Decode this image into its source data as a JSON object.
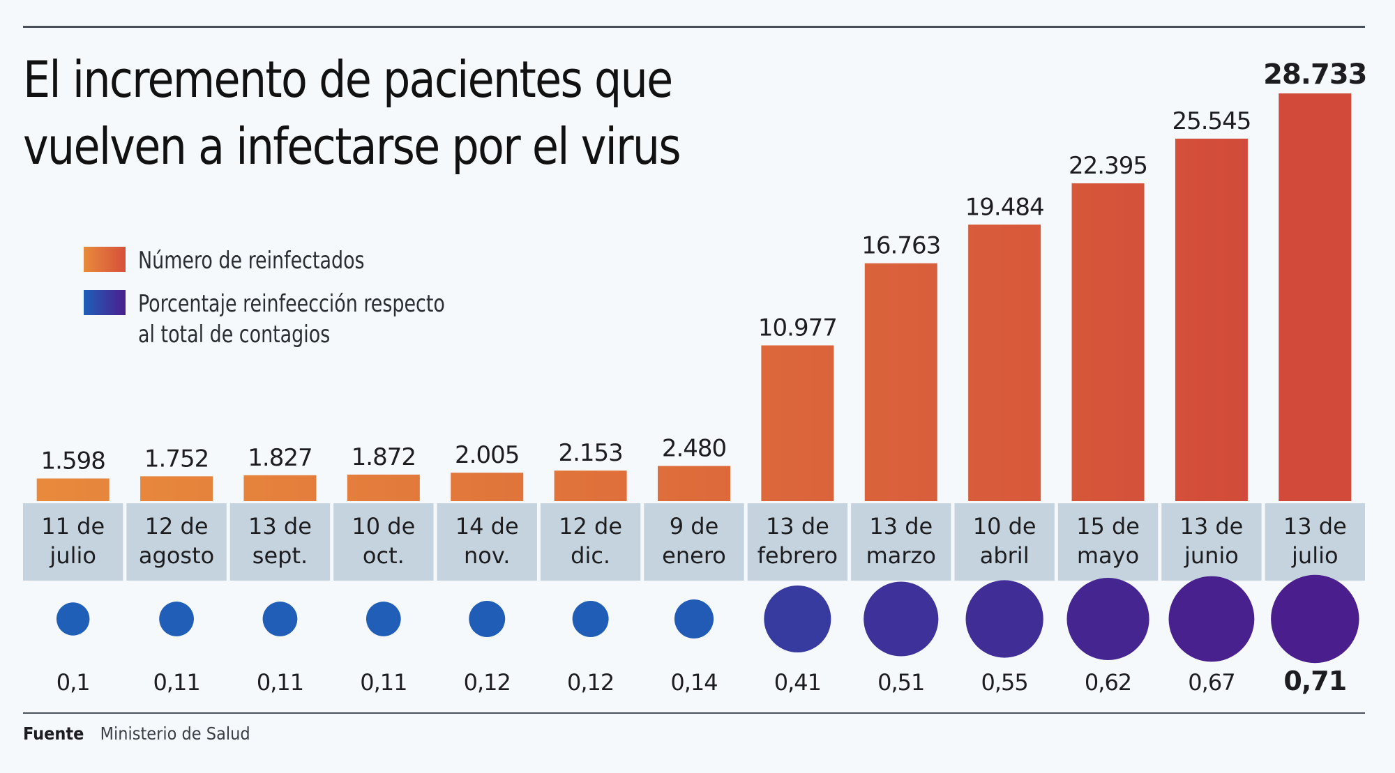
{
  "title_line1": "El incremento de pacientes que",
  "title_line2": "vuelven a infectarse por el virus",
  "legend": {
    "reinfected": "Número de reinfectados",
    "percentage_line1": "Porcentaje reinfeección respecto",
    "percentage_line2": "al total de contagios"
  },
  "footer": {
    "label": "Fuente",
    "source": "Ministerio de Salud"
  },
  "colors": {
    "bar_start": "#e88a3c",
    "bar_end": "#d24a3a",
    "circle_start": "#1f5fb8",
    "circle_end": "#4a1e8c",
    "category_bg": "#c5d3de",
    "background": "#f6f9fc"
  },
  "chart_data": {
    "type": "bar",
    "title": "El incremento de pacientes que vuelven a infectarse por el virus",
    "xlabel": "",
    "ylabel": "",
    "categories": [
      [
        "11 de",
        "julio"
      ],
      [
        "12 de",
        "agosto"
      ],
      [
        "13 de",
        "sept."
      ],
      [
        "10 de",
        "oct."
      ],
      [
        "14 de",
        "nov."
      ],
      [
        "12 de",
        "dic."
      ],
      [
        "9 de",
        "enero"
      ],
      [
        "13 de",
        "febrero"
      ],
      [
        "13 de",
        "marzo"
      ],
      [
        "10 de",
        "abril"
      ],
      [
        "15 de",
        "mayo"
      ],
      [
        "13 de",
        "junio"
      ],
      [
        "13 de",
        "julio"
      ]
    ],
    "series": [
      {
        "name": "Número de reinfectados",
        "type": "bar",
        "values": [
          1598,
          1752,
          1827,
          1872,
          2005,
          2153,
          2480,
          10977,
          16763,
          19484,
          22395,
          25545,
          28733
        ],
        "labels": [
          "1.598",
          "1.752",
          "1.827",
          "1.872",
          "2.005",
          "2.153",
          "2.480",
          "10.977",
          "16.763",
          "19.484",
          "22.395",
          "25.545",
          "28.733"
        ]
      },
      {
        "name": "Porcentaje reinfeección respecto al total de contagios",
        "type": "bubble",
        "values": [
          0.1,
          0.11,
          0.11,
          0.11,
          0.12,
          0.12,
          0.14,
          0.41,
          0.51,
          0.55,
          0.62,
          0.67,
          0.71
        ],
        "labels": [
          "0,1",
          "0,11",
          "0,11",
          "0,11",
          "0,12",
          "0,12",
          "0,14",
          "0,41",
          "0,51",
          "0,55",
          "0,62",
          "0,67",
          "0,71"
        ]
      }
    ],
    "ylim": [
      0,
      28733
    ],
    "highlight_last": true,
    "grid": false,
    "legend_position": "top-left"
  }
}
